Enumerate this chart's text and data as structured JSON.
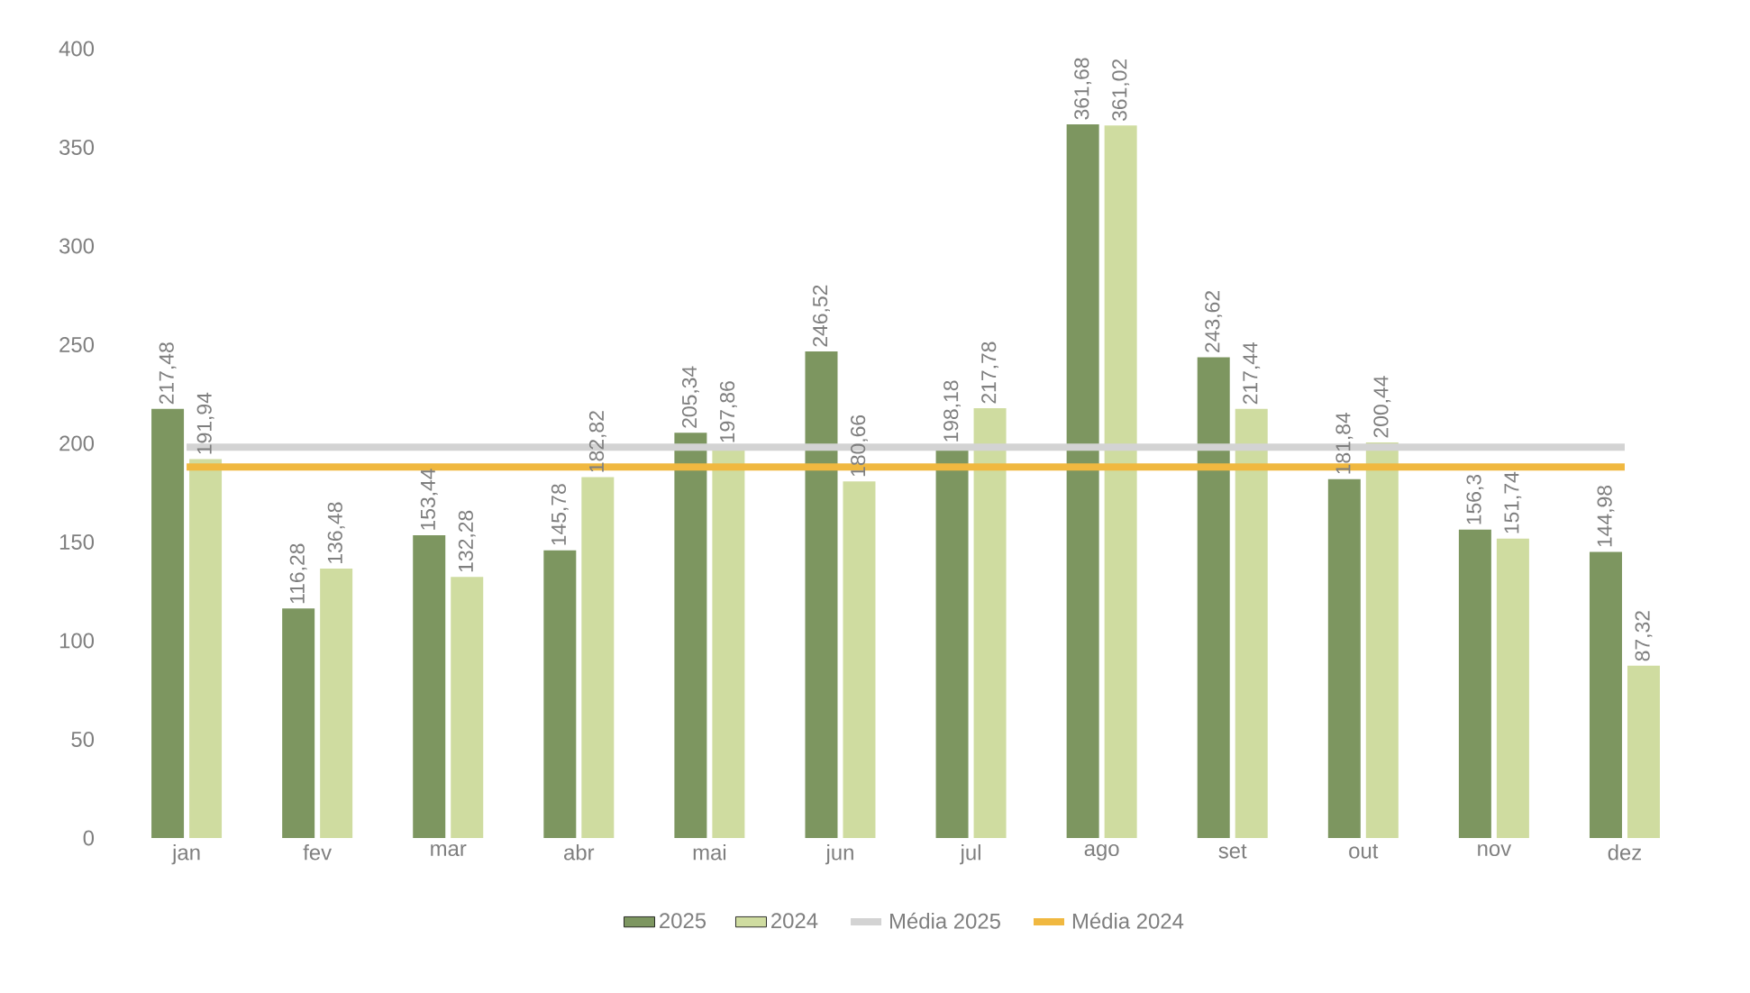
{
  "chart_data": {
    "type": "bar",
    "categories": [
      "jan",
      "fev",
      "mar",
      "abr",
      "mai",
      "jun",
      "jul",
      "ago",
      "set",
      "out",
      "nov",
      "dez"
    ],
    "series": [
      {
        "name": "2025",
        "color": "#7d9660",
        "values": [
          217.48,
          116.28,
          153.44,
          145.78,
          205.34,
          246.52,
          198.18,
          361.68,
          243.62,
          181.84,
          156.3,
          144.98
        ],
        "value_labels": [
          "217,48",
          "116,28",
          "153,44",
          "145,78",
          "205,34",
          "246,52",
          "198,18",
          "361,68",
          "243,62",
          "181,84",
          "156,3",
          "144,98"
        ]
      },
      {
        "name": "2024",
        "color": "#cfdca0",
        "values": [
          191.94,
          136.48,
          132.28,
          182.82,
          197.86,
          180.66,
          217.78,
          361.02,
          217.44,
          200.44,
          151.74,
          87.32
        ],
        "value_labels": [
          "191,94",
          "136,48",
          "132,28",
          "182,82",
          "197,86",
          "180,66",
          "217,78",
          "361,02",
          "217,44",
          "200,44",
          "151,74",
          "87,32"
        ]
      },
      {
        "name": "Média 2025",
        "type": "line",
        "color": "#d3d3d3",
        "values": [
          198,
          198,
          198,
          198,
          198,
          198,
          198,
          198,
          198,
          198,
          198,
          198
        ]
      },
      {
        "name": "Média 2024",
        "type": "line",
        "color": "#f0b840",
        "values": [
          188,
          188,
          188,
          188,
          188,
          188,
          188,
          188,
          188,
          188,
          188,
          188
        ]
      }
    ],
    "ylim": [
      0,
      400
    ],
    "yticks": [
      0,
      50,
      100,
      150,
      200,
      250,
      300,
      350,
      400
    ],
    "legend": "bottom"
  }
}
